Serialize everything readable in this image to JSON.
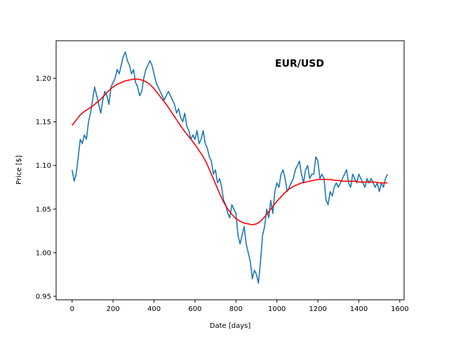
{
  "chart_data": {
    "type": "line",
    "title": "EUR/USD",
    "xlabel": "Date [days]",
    "ylabel": "Price [$]",
    "xlim": [
      -78,
      1621
    ],
    "ylim": [
      0.946,
      1.243
    ],
    "xticks": [
      0,
      200,
      400,
      600,
      800,
      1000,
      1200,
      1400,
      1600
    ],
    "yticks": [
      0.95,
      1.0,
      1.05,
      1.1,
      1.15,
      1.2
    ],
    "grid": false,
    "legend": "none",
    "series": [
      {
        "color": "#1f77b4",
        "x": [
          0,
          10,
          20,
          30,
          40,
          50,
          60,
          70,
          80,
          90,
          100,
          110,
          120,
          130,
          140,
          150,
          160,
          170,
          180,
          190,
          200,
          210,
          220,
          230,
          240,
          250,
          260,
          270,
          280,
          290,
          300,
          310,
          320,
          330,
          340,
          350,
          360,
          370,
          380,
          390,
          400,
          410,
          420,
          430,
          440,
          450,
          460,
          470,
          480,
          490,
          500,
          510,
          520,
          530,
          540,
          550,
          560,
          570,
          580,
          590,
          600,
          610,
          620,
          630,
          640,
          650,
          660,
          670,
          680,
          690,
          700,
          710,
          720,
          730,
          740,
          750,
          760,
          770,
          780,
          790,
          800,
          810,
          820,
          830,
          840,
          850,
          860,
          870,
          880,
          890,
          900,
          910,
          920,
          930,
          940,
          950,
          960,
          970,
          980,
          990,
          1000,
          1010,
          1020,
          1030,
          1040,
          1050,
          1060,
          1070,
          1080,
          1090,
          1100,
          1110,
          1120,
          1130,
          1140,
          1150,
          1160,
          1170,
          1180,
          1190,
          1200,
          1210,
          1220,
          1230,
          1240,
          1250,
          1260,
          1270,
          1280,
          1290,
          1300,
          1310,
          1320,
          1330,
          1340,
          1350,
          1360,
          1370,
          1380,
          1390,
          1400,
          1410,
          1420,
          1430,
          1440,
          1450,
          1460,
          1470,
          1480,
          1490,
          1500,
          1510,
          1520,
          1530,
          1540
        ],
        "values": [
          1.095,
          1.082,
          1.09,
          1.11,
          1.13,
          1.125,
          1.135,
          1.13,
          1.15,
          1.16,
          1.175,
          1.19,
          1.18,
          1.17,
          1.16,
          1.175,
          1.185,
          1.18,
          1.17,
          1.19,
          1.195,
          1.2,
          1.21,
          1.205,
          1.215,
          1.225,
          1.23,
          1.22,
          1.215,
          1.205,
          1.21,
          1.195,
          1.19,
          1.18,
          1.185,
          1.2,
          1.21,
          1.215,
          1.22,
          1.215,
          1.205,
          1.195,
          1.19,
          1.185,
          1.18,
          1.175,
          1.18,
          1.185,
          1.18,
          1.175,
          1.17,
          1.16,
          1.165,
          1.155,
          1.15,
          1.16,
          1.145,
          1.14,
          1.13,
          1.135,
          1.13,
          1.14,
          1.125,
          1.13,
          1.14,
          1.125,
          1.12,
          1.11,
          1.105,
          1.09,
          1.095,
          1.08,
          1.085,
          1.075,
          1.06,
          1.055,
          1.045,
          1.04,
          1.055,
          1.05,
          1.045,
          1.02,
          1.01,
          1.02,
          1.03,
          1.01,
          1.0,
          0.99,
          0.97,
          0.98,
          0.975,
          0.965,
          0.99,
          1.02,
          1.03,
          1.05,
          1.04,
          1.06,
          1.045,
          1.07,
          1.08,
          1.075,
          1.09,
          1.095,
          1.085,
          1.07,
          1.075,
          1.08,
          1.085,
          1.095,
          1.1,
          1.105,
          1.09,
          1.08,
          1.095,
          1.1,
          1.085,
          1.09,
          1.09,
          1.11,
          1.105,
          1.085,
          1.09,
          1.085,
          1.06,
          1.055,
          1.07,
          1.065,
          1.075,
          1.08,
          1.075,
          1.08,
          1.085,
          1.09,
          1.095,
          1.08,
          1.075,
          1.09,
          1.085,
          1.08,
          1.09,
          1.085,
          1.08,
          1.075,
          1.085,
          1.08,
          1.085,
          1.08,
          1.075,
          1.08,
          1.07,
          1.08,
          1.075,
          1.085,
          1.09
        ]
      },
      {
        "color": "#ff0000",
        "x": [
          0,
          20,
          40,
          60,
          80,
          100,
          120,
          140,
          160,
          180,
          200,
          220,
          240,
          260,
          280,
          300,
          320,
          340,
          360,
          380,
          400,
          420,
          440,
          460,
          480,
          500,
          520,
          540,
          560,
          580,
          600,
          620,
          640,
          660,
          680,
          700,
          720,
          740,
          760,
          780,
          800,
          820,
          840,
          860,
          880,
          900,
          920,
          940,
          960,
          980,
          1000,
          1020,
          1040,
          1060,
          1080,
          1100,
          1120,
          1140,
          1160,
          1180,
          1200,
          1220,
          1240,
          1260,
          1280,
          1300,
          1320,
          1340,
          1360,
          1380,
          1400,
          1420,
          1440,
          1460,
          1480,
          1500,
          1520,
          1540
        ],
        "values": [
          1.146,
          1.152,
          1.158,
          1.162,
          1.165,
          1.168,
          1.172,
          1.176,
          1.181,
          1.186,
          1.19,
          1.193,
          1.195,
          1.197,
          1.198,
          1.199,
          1.199,
          1.198,
          1.196,
          1.193,
          1.188,
          1.182,
          1.176,
          1.17,
          1.163,
          1.156,
          1.149,
          1.142,
          1.136,
          1.13,
          1.124,
          1.117,
          1.11,
          1.101,
          1.09,
          1.079,
          1.068,
          1.058,
          1.05,
          1.044,
          1.039,
          1.036,
          1.034,
          1.033,
          1.032,
          1.033,
          1.036,
          1.041,
          1.047,
          1.053,
          1.059,
          1.064,
          1.069,
          1.073,
          1.076,
          1.078,
          1.08,
          1.081,
          1.082,
          1.083,
          1.084,
          1.084,
          1.084,
          1.084,
          1.083,
          1.083,
          1.082,
          1.082,
          1.082,
          1.082,
          1.081,
          1.081,
          1.081,
          1.081,
          1.081,
          1.08,
          1.08,
          1.08
        ]
      }
    ]
  }
}
